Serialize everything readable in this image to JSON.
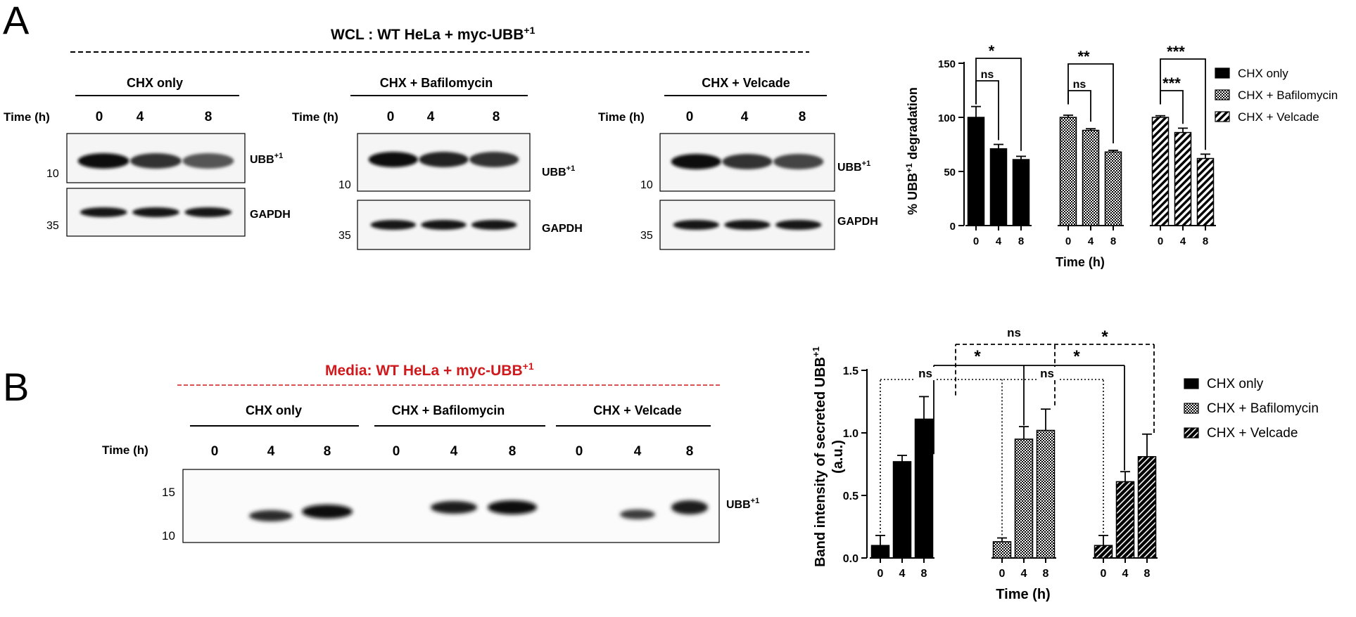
{
  "panelA": {
    "letter": "A",
    "header": "WCL : WT HeLa  + myc-UBB",
    "header_sup": "+1",
    "blots": [
      {
        "title": "CHX only",
        "time_label": "Time (h)",
        "times": [
          "0",
          "4",
          "8"
        ],
        "mw_top": "10",
        "mw_bottom": "35",
        "band_top": "UBB",
        "band_top_sup": "+1",
        "band_bottom": "GAPDH"
      },
      {
        "title": "CHX + Bafilomycin",
        "time_label": "Time (h)",
        "times": [
          "0",
          "4",
          "8"
        ],
        "mw_top": "10",
        "mw_bottom": "35",
        "band_top": "UBB",
        "band_top_sup": "+1",
        "band_bottom": "GAPDH"
      },
      {
        "title": "CHX + Velcade",
        "time_label": "Time (h)",
        "times": [
          "0",
          "4",
          "8"
        ],
        "mw_top": "10",
        "mw_bottom": "35",
        "band_top": "UBB",
        "band_top_sup": "+1",
        "band_bottom": "GAPDH"
      }
    ]
  },
  "panelB": {
    "letter": "B",
    "header": "Media: WT HeLa  + myc-UBB",
    "header_sup": "+1",
    "header_color": "#d0191c",
    "time_label": "Time (h)",
    "groups": [
      {
        "title": "CHX only",
        "times": [
          "0",
          "4",
          "8"
        ]
      },
      {
        "title": "CHX + Bafilomycin",
        "times": [
          "0",
          "4",
          "8"
        ]
      },
      {
        "title": "CHX + Velcade",
        "times": [
          "0",
          "4",
          "8"
        ]
      }
    ],
    "mw": [
      "15",
      "10"
    ],
    "band": "UBB",
    "band_sup": "+1"
  },
  "chart_data": [
    {
      "type": "bar",
      "ylabel": "% UBB",
      "ylabel_sup": "+1",
      "ylabel_suffix": " degradation",
      "xlabel": "Time (h)",
      "ylim": [
        0,
        150
      ],
      "yticks": [
        0,
        50,
        100,
        150
      ],
      "categories": [
        "0",
        "4",
        "8"
      ],
      "series": [
        {
          "name": "CHX only",
          "pattern": "solid",
          "values": [
            100,
            71,
            61
          ],
          "errors": [
            10,
            4,
            3
          ]
        },
        {
          "name": "CHX + Bafilomycin",
          "pattern": "dots",
          "values": [
            100,
            88,
            68
          ],
          "errors": [
            2,
            1.5,
            1.5
          ]
        },
        {
          "name": "CHX + Velcade",
          "pattern": "stripes",
          "values": [
            100,
            86,
            62
          ],
          "errors": [
            1.5,
            4,
            4
          ]
        }
      ],
      "comparisons": [
        {
          "series": 0,
          "from": "0",
          "to": "4",
          "label": "ns"
        },
        {
          "series": 0,
          "from": "0",
          "to": "8",
          "label": "*"
        },
        {
          "series": 1,
          "from": "0",
          "to": "4",
          "label": "ns"
        },
        {
          "series": 1,
          "from": "0",
          "to": "8",
          "label": "**"
        },
        {
          "series": 2,
          "from": "0",
          "to": "4",
          "label": "***"
        },
        {
          "series": 2,
          "from": "0",
          "to": "8",
          "label": "***"
        }
      ],
      "legend_position": "right"
    },
    {
      "type": "bar",
      "ylabel": "Band intensity of secreted UBB",
      "ylabel_sup": "+1",
      "ylabel2": "(a.u.)",
      "xlabel": "Time (h)",
      "ylim": [
        0,
        1.5
      ],
      "yticks": [
        "0.0",
        "0.5",
        "1.0",
        "1.5"
      ],
      "categories": [
        "0",
        "4",
        "8"
      ],
      "series": [
        {
          "name": "CHX only",
          "pattern": "solid",
          "values": [
            0.1,
            0.77,
            1.11
          ],
          "errors": [
            0.08,
            0.05,
            0.18
          ]
        },
        {
          "name": "CHX + Bafilomycin",
          "pattern": "dots",
          "values": [
            0.13,
            0.95,
            1.02
          ],
          "errors": [
            0.03,
            0.1,
            0.17
          ]
        },
        {
          "name": "CHX + Velcade",
          "pattern": "stripes",
          "values": [
            0.1,
            0.61,
            0.81
          ],
          "errors": [
            0.08,
            0.08,
            0.18
          ]
        }
      ],
      "comparisons": [
        "ns",
        "*",
        "ns",
        "ns",
        "*",
        "*"
      ],
      "legend_position": "right"
    }
  ]
}
